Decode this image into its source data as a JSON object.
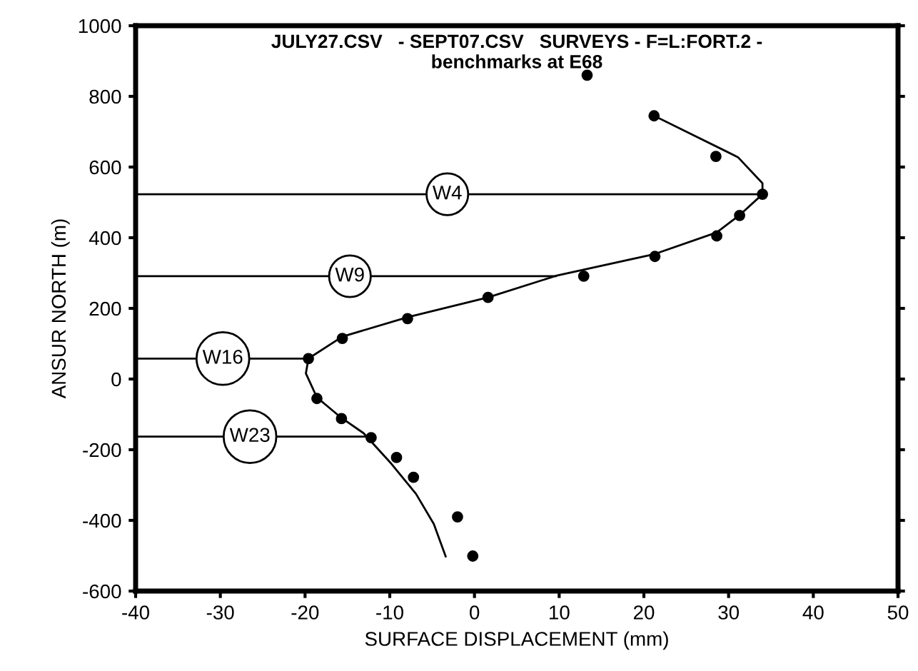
{
  "chart_data": {
    "type": "scatter",
    "title": "JULY27.CSV   - SEPT07.CSV   SURVEYS - F=L:FORT.2 -\nbenchmarks at E68",
    "xlabel": "SURFACE DISPLACEMENT (mm)",
    "ylabel": "ANSUR NORTH (m)",
    "xlim": [
      -40,
      50
    ],
    "xticks": [
      -40,
      -30,
      -20,
      -10,
      0,
      10,
      20,
      30,
      40,
      50
    ],
    "ylim": [
      -600,
      1000
    ],
    "yticks": [
      -600,
      -400,
      -200,
      0,
      200,
      400,
      600,
      800,
      1000
    ],
    "grid": false,
    "marker": "circle",
    "series": [
      {
        "color": "#000000",
        "x": [
          21.2,
          28.5,
          34,
          31.3,
          28.6,
          21.3,
          12.9,
          1.6,
          -7.9,
          -15.6,
          -19.6,
          -18.6,
          -15.7,
          -12.2,
          -9.2,
          -7.2,
          -2.0,
          -0.2,
          13.3
        ],
        "values": [
          745,
          630,
          523,
          463,
          405,
          347,
          291,
          231,
          171,
          115,
          58,
          -55,
          -112,
          -166,
          -222,
          -278,
          -390,
          -501,
          860
        ]
      },
      {
        "type": "line",
        "color": "#000000",
        "marker": "none",
        "x": [
          21.2,
          31.1,
          34,
          34,
          31.4,
          28.6,
          21.3,
          9.6,
          1.6,
          -7.9,
          -15.6,
          -19.6,
          -19.9,
          -18.6,
          -15.7,
          -13.1,
          -9.8,
          -6.9,
          -4.8,
          -3.4
        ],
        "values": [
          745,
          628,
          554,
          523,
          466,
          415,
          354,
          292,
          231,
          175,
          120,
          58,
          16,
          -52,
          -110,
          -153,
          -240,
          -325,
          -410,
          -502
        ]
      },
      {
        "type": "line",
        "color": "#000000",
        "marker": "none",
        "x": [
          -40,
          34
        ],
        "values": [
          523,
          523
        ]
      },
      {
        "type": "line",
        "color": "#000000",
        "marker": "none",
        "x": [
          -40,
          9.6
        ],
        "values": [
          291,
          291
        ]
      },
      {
        "type": "line",
        "color": "#000000",
        "marker": "none",
        "x": [
          -40,
          -19.6
        ],
        "values": [
          58,
          58
        ]
      },
      {
        "type": "line",
        "color": "#000000",
        "marker": "none",
        "x": [
          -40,
          -12.8
        ],
        "values": [
          -163,
          -163
        ]
      }
    ],
    "annotations": [
      {
        "text": "W4",
        "x": -3.2,
        "y": 523
      },
      {
        "text": "W9",
        "x": -14.7,
        "y": 291
      },
      {
        "text": "W16",
        "x": -29.7,
        "y": 58
      },
      {
        "text": "W23",
        "x": -26.5,
        "y": -163
      }
    ]
  }
}
